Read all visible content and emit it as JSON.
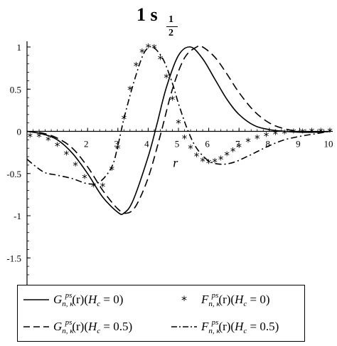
{
  "chart_data": {
    "type": "line",
    "title": {
      "main": "1 s",
      "frac_num": "1",
      "frac_den": "2"
    },
    "xlabel": "r",
    "ylabel": "",
    "xlim": [
      0,
      10
    ],
    "ylim": [
      -1.75,
      1.05
    ],
    "x_ticks": [
      "2",
      "3",
      "4",
      "5",
      "6",
      "7",
      "8",
      "9",
      "10"
    ],
    "y_ticks": [
      "1",
      "0.5",
      "0",
      "-0.5",
      "-1",
      "-1.5"
    ],
    "grid": false,
    "legend_position": "bottom",
    "series": [
      {
        "name": "G_{n,κ}^{ps}(r)(H_c = 0)",
        "style": "solid",
        "x": [
          0,
          0.5,
          1.0,
          1.5,
          2.0,
          2.5,
          3.0,
          3.2,
          3.5,
          4.0,
          4.3,
          4.6,
          5.0,
          5.4,
          5.8,
          6.2,
          6.6,
          7.0,
          7.5,
          8.0,
          8.5,
          9.0,
          9.5,
          10.0
        ],
        "y": [
          0,
          -0.03,
          -0.1,
          -0.26,
          -0.5,
          -0.78,
          -0.96,
          -0.97,
          -0.82,
          -0.3,
          0.1,
          0.52,
          0.9,
          1.0,
          0.86,
          0.62,
          0.38,
          0.2,
          0.07,
          0.02,
          0.0,
          -0.01,
          -0.01,
          0.0
        ]
      },
      {
        "name": "G_{n,κ}^{ps}(r)(H_c = 0.5)",
        "style": "dashed",
        "x": [
          0,
          0.5,
          1.0,
          1.5,
          2.0,
          2.5,
          3.0,
          3.3,
          3.6,
          4.0,
          4.4,
          4.8,
          5.2,
          5.6,
          5.8,
          6.2,
          6.6,
          7.0,
          7.5,
          8.0,
          8.5,
          9.0,
          9.5,
          10.0
        ],
        "y": [
          0,
          -0.02,
          -0.08,
          -0.2,
          -0.42,
          -0.7,
          -0.92,
          -0.97,
          -0.88,
          -0.55,
          -0.05,
          0.5,
          0.87,
          1.0,
          1.0,
          0.88,
          0.68,
          0.46,
          0.24,
          0.1,
          0.03,
          0.0,
          -0.01,
          0.0
        ]
      },
      {
        "name": "F_{n,κ}^{ps}(r)(H_c = 0)",
        "style": "stars",
        "x": [
          0.1,
          0.4,
          0.7,
          1.0,
          1.3,
          1.6,
          1.9,
          2.2,
          2.5,
          2.8,
          3.0,
          3.2,
          3.4,
          3.6,
          3.8,
          4.0,
          4.2,
          4.4,
          4.6,
          4.8,
          5.0,
          5.2,
          5.4,
          5.6,
          5.8,
          6.0,
          6.2,
          6.4,
          6.6,
          6.8,
          7.0,
          7.3,
          7.6,
          7.9,
          8.2,
          8.5,
          8.8,
          9.1,
          9.4,
          9.7,
          10.0
        ],
        "y": [
          -0.06,
          -0.06,
          -0.1,
          -0.17,
          -0.27,
          -0.4,
          -0.55,
          -0.65,
          -0.65,
          -0.45,
          -0.2,
          0.15,
          0.5,
          0.78,
          0.94,
          1.0,
          0.99,
          0.86,
          0.64,
          0.38,
          0.1,
          -0.08,
          -0.2,
          -0.29,
          -0.35,
          -0.37,
          -0.36,
          -0.33,
          -0.28,
          -0.23,
          -0.18,
          -0.12,
          -0.08,
          -0.05,
          -0.03,
          -0.02,
          -0.01,
          -0.01,
          0.0,
          0.0,
          0.0
        ]
      },
      {
        "name": "F_{n,κ}^{ps}(r)(H_c = 0.5)",
        "style": "dashdot",
        "x": [
          0,
          0.3,
          0.6,
          1.0,
          1.5,
          2.0,
          2.4,
          2.8,
          3.0,
          3.2,
          3.5,
          3.8,
          4.0,
          4.2,
          4.5,
          4.8,
          5.0,
          5.3,
          5.6,
          6.0,
          6.4,
          6.8,
          7.2,
          7.6,
          8.0,
          8.5,
          9.0,
          9.5,
          10.0
        ],
        "y": [
          -0.33,
          -0.42,
          -0.49,
          -0.52,
          -0.56,
          -0.62,
          -0.6,
          -0.42,
          -0.17,
          0.15,
          0.55,
          0.88,
          0.99,
          0.99,
          0.85,
          0.57,
          0.33,
          0.02,
          -0.2,
          -0.35,
          -0.39,
          -0.37,
          -0.31,
          -0.24,
          -0.17,
          -0.1,
          -0.06,
          -0.03,
          0.0
        ]
      }
    ]
  },
  "legend": {
    "items": [
      {
        "letter": "G",
        "sup": "ps",
        "sub": "n, κ",
        "arg": "(r)(",
        "hc": "H",
        "hc_sub": "c",
        "eq": " = 0)"
      },
      {
        "letter": "F",
        "sup": "ps",
        "sub": "n, κ",
        "arg": "(r)(",
        "hc": "H",
        "hc_sub": "c",
        "eq": " = 0)"
      },
      {
        "letter": "G",
        "sup": "ps",
        "sub": "n, κ",
        "arg": "(r)(",
        "hc": "H",
        "hc_sub": "c",
        "eq": " = 0.5)"
      },
      {
        "letter": "F",
        "sup": "ps",
        "sub": "n, κ",
        "arg": "(r)(",
        "hc": "H",
        "hc_sub": "c",
        "eq": " = 0.5)"
      }
    ]
  }
}
